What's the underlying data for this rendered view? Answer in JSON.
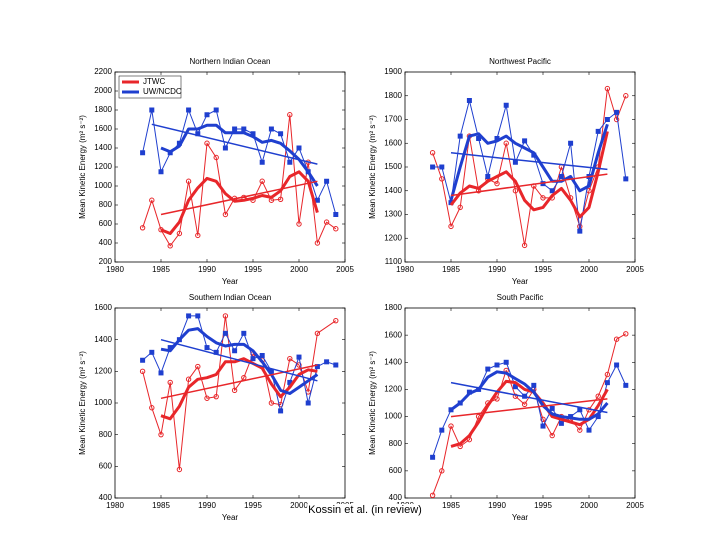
{
  "chart_data": [
    {
      "type": "line",
      "title": "Northern Indian Ocean",
      "xlabel": "Year",
      "ylabel": "Mean Kinetic Energy (m² s⁻²)",
      "xlim": [
        1980,
        2005
      ],
      "xticks": [
        1980,
        1985,
        1990,
        1995,
        2000,
        2005
      ],
      "ylim": [
        200,
        2200
      ],
      "yticks": [
        200,
        400,
        600,
        800,
        1000,
        1200,
        1400,
        1600,
        1800,
        2000,
        2200
      ],
      "legend": "upper left",
      "series": [
        {
          "name": "JTWC",
          "color": "#e8262a",
          "marker": "circle",
          "width": 1,
          "x": [
            1983,
            1984,
            1985,
            1986,
            1987,
            1988,
            1989,
            1990,
            1991,
            1992,
            1993,
            1994,
            1995,
            1996,
            1997,
            1998,
            1999,
            2000,
            2001,
            2002,
            2003,
            2004
          ],
          "values": [
            560,
            850,
            540,
            370,
            500,
            1050,
            480,
            1450,
            1300,
            700,
            870,
            880,
            850,
            1050,
            850,
            860,
            1750,
            600,
            1250,
            400,
            620,
            550
          ]
        },
        {
          "name": "UW/NCDC",
          "color": "#1f3fcf",
          "marker": "square",
          "width": 1,
          "x": [
            1983,
            1984,
            1985,
            1986,
            1987,
            1988,
            1989,
            1990,
            1991,
            1992,
            1993,
            1994,
            1995,
            1996,
            1997,
            1998,
            1999,
            2000,
            2001,
            2002,
            2003,
            2004
          ],
          "values": [
            1350,
            1800,
            1150,
            1350,
            1450,
            1800,
            1550,
            1750,
            1800,
            1400,
            1600,
            1600,
            1550,
            1250,
            1600,
            1550,
            1250,
            1400,
            1150,
            850,
            1050,
            700
          ]
        },
        {
          "color": "#e8262a",
          "width": 3,
          "x": [
            1985,
            1986,
            1987,
            1988,
            1989,
            1990,
            1991,
            1992,
            1993,
            1994,
            1995,
            1996,
            1997,
            1998,
            1999,
            2000,
            2001,
            2002
          ],
          "values": [
            540,
            500,
            620,
            850,
            980,
            1080,
            1050,
            920,
            840,
            850,
            870,
            900,
            880,
            950,
            1100,
            1150,
            1050,
            720
          ]
        },
        {
          "color": "#1f3fcf",
          "width": 3,
          "x": [
            1985,
            1986,
            1987,
            1988,
            1989,
            1990,
            1991,
            1992,
            1993,
            1994,
            1995,
            1996,
            1997,
            1998,
            1999,
            2000,
            2001,
            2002
          ],
          "values": [
            1400,
            1360,
            1420,
            1600,
            1600,
            1640,
            1640,
            1560,
            1560,
            1560,
            1520,
            1460,
            1480,
            1450,
            1370,
            1280,
            1150,
            1000
          ]
        },
        {
          "color": "#e8262a",
          "width": 1.5,
          "x": [
            1985,
            2002
          ],
          "values": [
            700,
            1050
          ]
        },
        {
          "color": "#1f3fcf",
          "width": 1.5,
          "x": [
            1984,
            2002
          ],
          "values": [
            1650,
            1230
          ]
        }
      ]
    },
    {
      "type": "line",
      "title": "Northwest Pacific",
      "xlabel": "Year",
      "ylabel": "Mean Kinetic Energy (m² s⁻²)",
      "xlim": [
        1980,
        2005
      ],
      "xticks": [
        1980,
        1985,
        1990,
        1995,
        2000,
        2005
      ],
      "ylim": [
        1100,
        1900
      ],
      "yticks": [
        1100,
        1200,
        1300,
        1400,
        1500,
        1600,
        1700,
        1800,
        1900
      ],
      "series": [
        {
          "color": "#e8262a",
          "marker": "circle",
          "width": 1,
          "x": [
            1983,
            1984,
            1985,
            1986,
            1987,
            1988,
            1989,
            1990,
            1991,
            1992,
            1993,
            1994,
            1995,
            1996,
            1997,
            1998,
            1999,
            2000,
            2001,
            2002,
            2003,
            2004
          ],
          "values": [
            1560,
            1450,
            1250,
            1330,
            1630,
            1400,
            1450,
            1430,
            1600,
            1400,
            1170,
            1420,
            1370,
            1370,
            1500,
            1370,
            1250,
            1400,
            1500,
            1830,
            1700,
            1800
          ]
        },
        {
          "color": "#1f3fcf",
          "marker": "square",
          "width": 1,
          "x": [
            1983,
            1984,
            1985,
            1986,
            1987,
            1988,
            1989,
            1990,
            1991,
            1992,
            1993,
            1994,
            1995,
            1996,
            1997,
            1998,
            1999,
            2000,
            2001,
            2002,
            2003,
            2004
          ],
          "values": [
            1500,
            1500,
            1350,
            1630,
            1780,
            1620,
            1460,
            1620,
            1760,
            1520,
            1610,
            1550,
            1430,
            1400,
            1460,
            1600,
            1230,
            1460,
            1650,
            1700,
            1730,
            1450
          ]
        },
        {
          "color": "#e8262a",
          "width": 3,
          "x": [
            1985,
            1986,
            1987,
            1988,
            1989,
            1990,
            1991,
            1992,
            1993,
            1994,
            1995,
            1996,
            1997,
            1998,
            1999,
            2000,
            2001,
            2002
          ],
          "values": [
            1340,
            1390,
            1420,
            1410,
            1440,
            1460,
            1480,
            1440,
            1360,
            1320,
            1330,
            1380,
            1410,
            1360,
            1290,
            1330,
            1480,
            1650
          ]
        },
        {
          "color": "#1f3fcf",
          "width": 3,
          "x": [
            1985,
            1986,
            1987,
            1988,
            1989,
            1990,
            1991,
            1992,
            1993,
            1994,
            1995,
            1996,
            1997,
            1998,
            1999,
            2000,
            2001,
            2002
          ],
          "values": [
            1360,
            1500,
            1630,
            1640,
            1600,
            1610,
            1630,
            1600,
            1580,
            1560,
            1500,
            1440,
            1440,
            1460,
            1400,
            1420,
            1560,
            1680
          ]
        },
        {
          "color": "#e8262a",
          "width": 1.5,
          "x": [
            1985,
            2002
          ],
          "values": [
            1380,
            1470
          ]
        },
        {
          "color": "#1f3fcf",
          "width": 1.5,
          "x": [
            1985,
            2002
          ],
          "values": [
            1560,
            1490
          ]
        }
      ]
    },
    {
      "type": "line",
      "title": "Southern Indian Ocean",
      "xlabel": "Year",
      "ylabel": "Mean Kinetic Energy (m² s⁻²)",
      "xlim": [
        1980,
        2005
      ],
      "xticks": [
        1980,
        1985,
        1990,
        1995,
        2000,
        2005
      ],
      "ylim": [
        400,
        1600
      ],
      "yticks": [
        400,
        600,
        800,
        1000,
        1200,
        1400,
        1600
      ],
      "series": [
        {
          "color": "#e8262a",
          "marker": "circle",
          "width": 1,
          "x": [
            1983,
            1984,
            1985,
            1986,
            1987,
            1988,
            1989,
            1990,
            1991,
            1992,
            1993,
            1994,
            1995,
            1996,
            1997,
            1998,
            1999,
            2000,
            2001,
            2002,
            2004
          ],
          "values": [
            1200,
            970,
            800,
            1130,
            580,
            1150,
            1230,
            1030,
            1040,
            1550,
            1080,
            1160,
            1310,
            1270,
            1000,
            990,
            1280,
            1240,
            1070,
            1440,
            1520
          ]
        },
        {
          "color": "#1f3fcf",
          "marker": "square",
          "width": 1,
          "x": [
            1983,
            1984,
            1985,
            1986,
            1987,
            1988,
            1989,
            1990,
            1991,
            1992,
            1993,
            1994,
            1995,
            1996,
            1997,
            1998,
            1999,
            2000,
            2001,
            2002,
            2003,
            2004
          ],
          "values": [
            1270,
            1320,
            1190,
            1350,
            1400,
            1550,
            1550,
            1350,
            1320,
            1440,
            1330,
            1440,
            1280,
            1300,
            1200,
            950,
            1130,
            1290,
            1000,
            1230,
            1260,
            1240
          ]
        },
        {
          "color": "#e8262a",
          "width": 3,
          "x": [
            1985,
            1986,
            1987,
            1988,
            1989,
            1990,
            1991,
            1992,
            1993,
            1994,
            1995,
            1996,
            1997,
            1998,
            1999,
            2000,
            2001,
            2002
          ],
          "values": [
            920,
            900,
            980,
            1100,
            1150,
            1160,
            1180,
            1260,
            1260,
            1280,
            1250,
            1220,
            1120,
            1040,
            1100,
            1180,
            1210,
            1200
          ]
        },
        {
          "color": "#1f3fcf",
          "width": 3,
          "x": [
            1985,
            1986,
            1987,
            1988,
            1989,
            1990,
            1991,
            1992,
            1993,
            1994,
            1995,
            1996,
            1997,
            1998,
            1999,
            2000,
            2001,
            2002
          ],
          "values": [
            1340,
            1330,
            1400,
            1460,
            1470,
            1420,
            1380,
            1360,
            1370,
            1370,
            1330,
            1260,
            1180,
            1080,
            1060,
            1100,
            1140,
            1180
          ]
        },
        {
          "color": "#e8262a",
          "width": 1.5,
          "x": [
            1985,
            2002
          ],
          "values": [
            1030,
            1240
          ]
        },
        {
          "color": "#1f3fcf",
          "width": 1.5,
          "x": [
            1985,
            2002
          ],
          "values": [
            1400,
            1140
          ]
        }
      ]
    },
    {
      "type": "line",
      "title": "South Pacific",
      "xlabel": "Year",
      "ylabel": "Mean Kinetic Energy (m² s⁻²)",
      "xlim": [
        1980,
        2005
      ],
      "xticks": [
        1980,
        1985,
        1990,
        1995,
        2000,
        2005
      ],
      "ylim": [
        400,
        1800
      ],
      "yticks": [
        400,
        600,
        800,
        1000,
        1200,
        1400,
        1600,
        1800
      ],
      "series": [
        {
          "color": "#e8262a",
          "marker": "circle",
          "width": 1,
          "x": [
            1983,
            1984,
            1985,
            1986,
            1987,
            1988,
            1989,
            1990,
            1991,
            1992,
            1993,
            1994,
            1995,
            1996,
            1997,
            1998,
            1999,
            2000,
            2001,
            2002,
            2003,
            2004
          ],
          "values": [
            420,
            600,
            930,
            780,
            830,
            1000,
            1100,
            1130,
            1340,
            1150,
            1090,
            1200,
            980,
            860,
            1000,
            980,
            900,
            1050,
            1150,
            1310,
            1570,
            1610
          ]
        },
        {
          "color": "#1f3fcf",
          "marker": "square",
          "width": 1,
          "x": [
            1983,
            1984,
            1985,
            1986,
            1987,
            1988,
            1989,
            1990,
            1991,
            1992,
            1993,
            1994,
            1995,
            1996,
            1997,
            1998,
            1999,
            2000,
            2001,
            2002,
            2003,
            2004
          ],
          "values": [
            700,
            900,
            1050,
            1100,
            1180,
            1200,
            1350,
            1380,
            1400,
            1220,
            1150,
            1230,
            930,
            1060,
            950,
            1000,
            1050,
            900,
            1000,
            1250,
            1380,
            1230
          ]
        },
        {
          "color": "#e8262a",
          "width": 3,
          "x": [
            1985,
            1986,
            1987,
            1988,
            1989,
            1990,
            1991,
            1992,
            1993,
            1994,
            1995,
            1996,
            1997,
            1998,
            1999,
            2000,
            2001,
            2002
          ],
          "values": [
            780,
            800,
            860,
            960,
            1080,
            1180,
            1260,
            1250,
            1200,
            1180,
            1100,
            1000,
            980,
            960,
            940,
            980,
            1080,
            1200
          ]
        },
        {
          "color": "#1f3fcf",
          "width": 3,
          "x": [
            1985,
            1986,
            1987,
            1988,
            1989,
            1990,
            1991,
            1992,
            1993,
            1994,
            1995,
            1996,
            1997,
            1998,
            1999,
            2000,
            2001,
            2002
          ],
          "values": [
            1050,
            1100,
            1170,
            1200,
            1290,
            1330,
            1320,
            1280,
            1240,
            1180,
            1080,
            1020,
            1000,
            990,
            980,
            980,
            1020,
            1100
          ]
        },
        {
          "color": "#e8262a",
          "width": 1.5,
          "x": [
            1985,
            2002
          ],
          "values": [
            1000,
            1130
          ]
        },
        {
          "color": "#1f3fcf",
          "width": 1.5,
          "x": [
            1985,
            2002
          ],
          "values": [
            1250,
            1030
          ]
        }
      ]
    }
  ],
  "footer": "Kossin et al. (in review)"
}
